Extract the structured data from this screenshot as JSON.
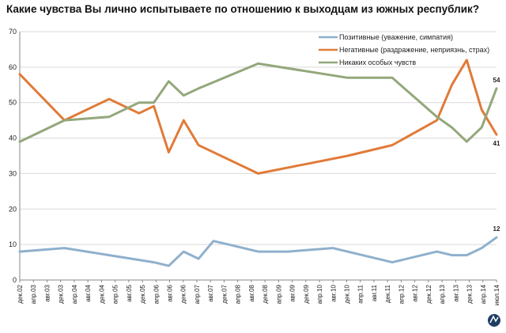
{
  "chart_data": {
    "type": "line",
    "title": "Какие чувства Вы лично испытываете по отношению к выходцам из южных республик?",
    "xlabel": "",
    "ylabel": "",
    "ylim": [
      0,
      70
    ],
    "yticks": [
      0,
      10,
      20,
      30,
      40,
      50,
      60,
      70
    ],
    "grid": "horizontal",
    "legend_position": "top-right",
    "categories": [
      "дек.02",
      "апр.03",
      "авг.03",
      "дек.03",
      "апр.04",
      "авг.04",
      "дек.04",
      "апр.05",
      "авг.05",
      "дек.05",
      "апр.06",
      "авг.06",
      "дек.06",
      "апр.07",
      "авг.07",
      "дек.07",
      "апр.08",
      "авг.08",
      "дек.08",
      "апр.09",
      "авг.09",
      "дек.09",
      "апр.10",
      "авг.10",
      "дек.10",
      "апр.11",
      "авг.11",
      "дек.11",
      "апр.12",
      "авг.12",
      "дек.12",
      "апр.13",
      "авг.13",
      "дек.13",
      "апр.14",
      "июл.14"
    ],
    "series": [
      {
        "name": "Позитивные (уважение, симпатия)",
        "color": "#8fb0cc",
        "points": [
          [
            0,
            8
          ],
          [
            3,
            9
          ],
          [
            6,
            7
          ],
          [
            9,
            5
          ],
          [
            10,
            4
          ],
          [
            11,
            8
          ],
          [
            12,
            6
          ],
          [
            13,
            11
          ],
          [
            14,
            10
          ],
          [
            16,
            8
          ],
          [
            18,
            8
          ],
          [
            21,
            9
          ],
          [
            25,
            5
          ],
          [
            27,
            7
          ],
          [
            28,
            8
          ],
          [
            29,
            7
          ],
          [
            30,
            7
          ],
          [
            31,
            9
          ],
          [
            32,
            12
          ]
        ],
        "end_label": "12"
      },
      {
        "name": "Негативные (раздражение, неприязнь, страх)",
        "color": "#e07b39",
        "points": [
          [
            0,
            58
          ],
          [
            3,
            45
          ],
          [
            6,
            51
          ],
          [
            8,
            47
          ],
          [
            9,
            49
          ],
          [
            10,
            36
          ],
          [
            11,
            45
          ],
          [
            12,
            38
          ],
          [
            16,
            30
          ],
          [
            22,
            35
          ],
          [
            25,
            38
          ],
          [
            28,
            45
          ],
          [
            29,
            55
          ],
          [
            30,
            62
          ],
          [
            31,
            48
          ],
          [
            32,
            41
          ]
        ],
        "end_label": "41"
      },
      {
        "name": "Никаких особых чувств",
        "color": "#94a77b",
        "points": [
          [
            0,
            39
          ],
          [
            3,
            45
          ],
          [
            6,
            46
          ],
          [
            8,
            50
          ],
          [
            9,
            50
          ],
          [
            10,
            56
          ],
          [
            11,
            52
          ],
          [
            12,
            54
          ],
          [
            16,
            61
          ],
          [
            22,
            57
          ],
          [
            25,
            57
          ],
          [
            28,
            46
          ],
          [
            29,
            43
          ],
          [
            30,
            39
          ],
          [
            31,
            43
          ],
          [
            32,
            54
          ]
        ],
        "end_label": "54"
      }
    ]
  },
  "logo": {
    "icon": "levada-logo-icon"
  }
}
